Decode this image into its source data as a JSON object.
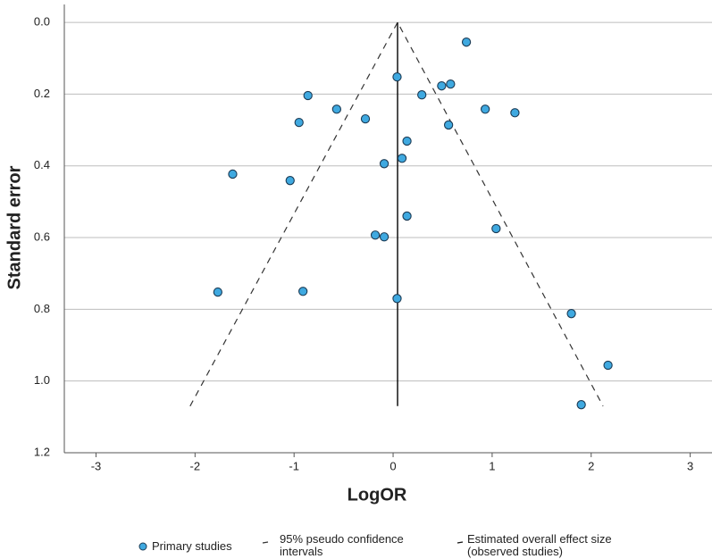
{
  "chart_data": {
    "type": "scatter",
    "x_label": "LogOR",
    "y_label": "Standard error",
    "xlim": [
      -3.32,
      3.22
    ],
    "ylim": [
      1.2,
      -0.05
    ],
    "xticks": [
      -3,
      -2,
      -1,
      0,
      1,
      2,
      3
    ],
    "yticks": [
      {
        "value": 0,
        "label": "0.0"
      },
      0.2,
      0.4,
      0.6,
      0.8,
      {
        "value": 1,
        "label": "1.0"
      },
      1.2
    ],
    "grid": true,
    "series": [
      {
        "name": "Primary studies",
        "color": "#3fa9e0",
        "x": [
          0.74,
          0.04,
          -0.86,
          0.29,
          0.49,
          0.58,
          -0.57,
          0.93,
          1.23,
          -0.95,
          -0.28,
          0.56,
          0.14,
          0.09,
          -0.09,
          -1.62,
          -1.04,
          0.14,
          1.04,
          -0.18,
          -0.09,
          -1.77,
          -0.91,
          0.04,
          1.8,
          2.17,
          1.9
        ],
        "values": [
          0.055,
          0.152,
          0.204,
          0.202,
          0.177,
          0.172,
          0.242,
          0.242,
          0.252,
          0.279,
          0.269,
          0.286,
          0.331,
          0.379,
          0.394,
          0.423,
          0.441,
          0.54,
          0.575,
          0.593,
          0.598,
          0.752,
          0.75,
          0.77,
          0.812,
          0.956,
          1.066
        ]
      }
    ],
    "lines": [
      {
        "name": "95% pseudo confidence intervals",
        "color": "#333333",
        "style": "dashed",
        "x": [
          -2.05,
          0.045,
          2.12
        ],
        "values": [
          1.07,
          0,
          1.07
        ]
      },
      {
        "name": "Estimated overall effect size (observed studies)",
        "color": "#111111",
        "style": "solid",
        "x": [
          0.045,
          0.045
        ],
        "values": [
          0,
          1.07
        ]
      }
    ]
  }
}
